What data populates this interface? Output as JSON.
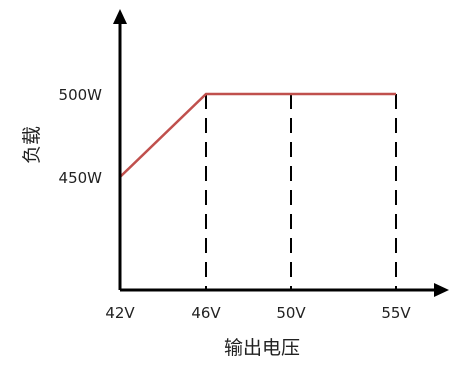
{
  "chart_data": {
    "type": "line",
    "xlabel": "输出电压",
    "ylabel": "负载",
    "x_ticks": [
      "42V",
      "46V",
      "50V",
      "55V"
    ],
    "y_ticks": [
      "450W",
      "500W"
    ],
    "x": [
      42,
      46,
      50,
      55
    ],
    "series": [
      {
        "values": [
          450,
          500,
          500,
          500
        ]
      }
    ],
    "xlim": [
      42,
      55
    ],
    "ylim": [
      450,
      500
    ],
    "x_scale": "categorical",
    "dashed_drop_lines_at": [
      "46V",
      "50V",
      "55V"
    ],
    "grid": false,
    "colors": {
      "line": "#c0504d",
      "axis": "#000000",
      "drop_lines": "#000000"
    }
  }
}
